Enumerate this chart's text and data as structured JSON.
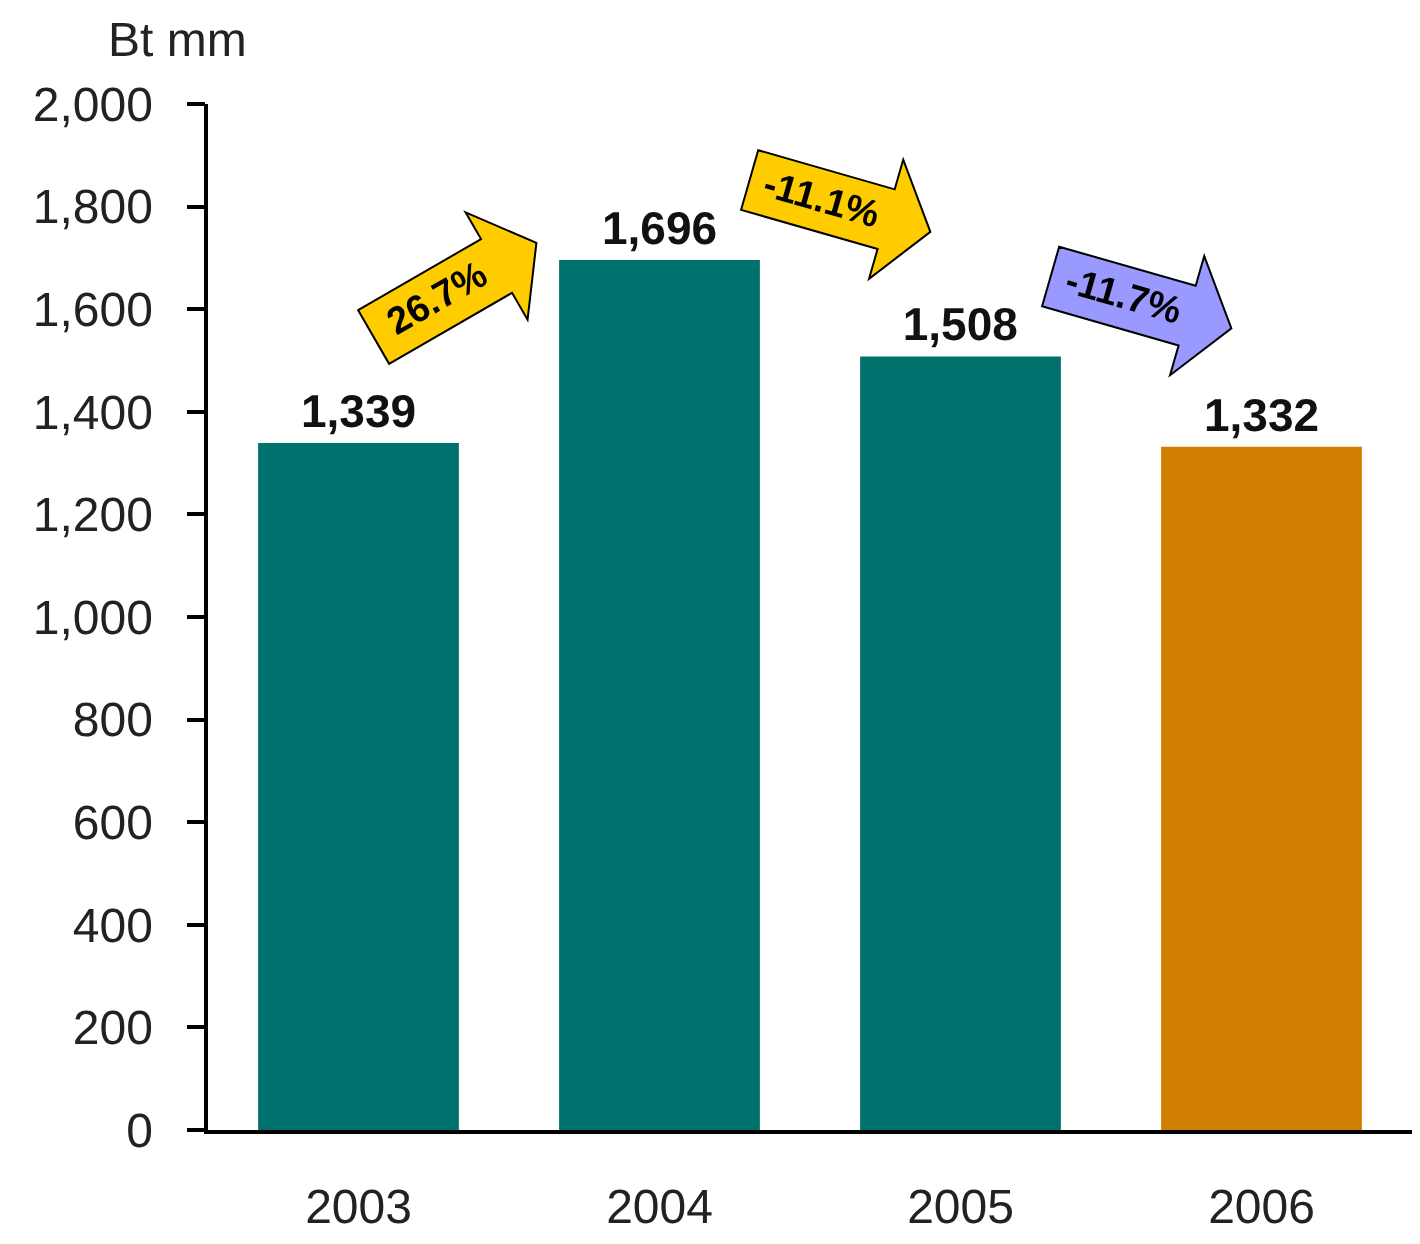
{
  "chart_data": {
    "type": "bar",
    "ylabel": "Bt mm",
    "categories": [
      "2003",
      "2004",
      "2005",
      "2006"
    ],
    "values": [
      1339,
      1696,
      1508,
      1332
    ],
    "colors": [
      "#00716d",
      "#00716d",
      "#00716d",
      "#d07e00"
    ],
    "value_labels": [
      "1,339",
      "1,696",
      "1,508",
      "1,332"
    ],
    "ylim": [
      0,
      2000
    ],
    "yticks": [
      0,
      200,
      400,
      600,
      800,
      {
        "value": 1000,
        "label": "1,000"
      },
      {
        "value": 1200,
        "label": "1,200"
      },
      {
        "value": 1400,
        "label": "1,400"
      },
      {
        "value": 1600,
        "label": "1,600"
      },
      {
        "value": 1800,
        "label": "1,800"
      },
      {
        "value": 2000,
        "label": "2,000"
      }
    ],
    "annotations": [
      "26.7%",
      "-11.1%",
      "-11.7%"
    ]
  }
}
